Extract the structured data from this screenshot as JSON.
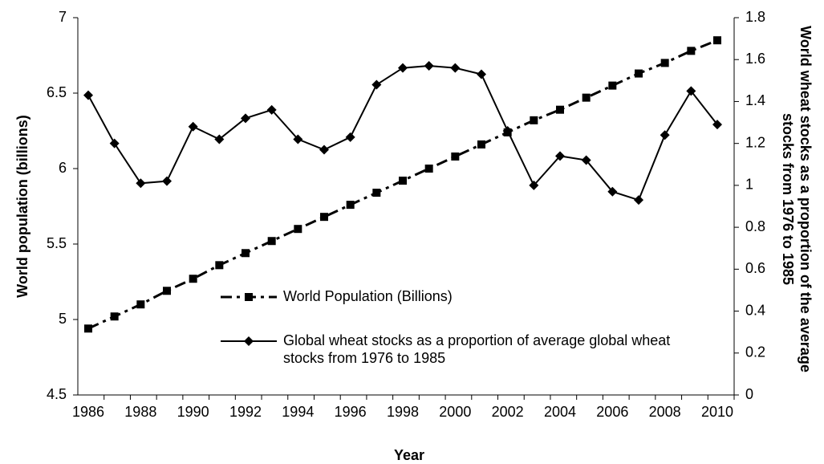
{
  "chart_data": {
    "type": "line",
    "x_label": "Year",
    "y_label": "World population (billions)",
    "y2_label": "World wheat stocks as a proportion of the average stocks from 1976 to 1985",
    "categories": [
      "1986",
      null,
      "1988",
      null,
      "1990",
      null,
      "1992",
      null,
      "1994",
      null,
      "1996",
      null,
      "1998",
      null,
      "2000",
      null,
      "2002",
      null,
      "2004",
      null,
      "2006",
      null,
      "2008",
      null,
      "2010"
    ],
    "ylim": [
      4.5,
      7
    ],
    "yticks": [
      4.5,
      5,
      5.5,
      6,
      6.5,
      7
    ],
    "y2lim": [
      0,
      1.8
    ],
    "y2ticks": [
      0,
      0.2,
      0.4,
      0.6,
      0.8,
      1,
      1.2,
      1.4,
      1.6,
      1.8
    ],
    "series": [
      {
        "name": "World Population (Billions)",
        "color": "#000000",
        "marker": "square",
        "dash": "dash-dot",
        "values": [
          4.94,
          5.02,
          5.1,
          5.19,
          5.27,
          5.36,
          5.44,
          5.52,
          5.6,
          5.68,
          5.76,
          5.84,
          5.92,
          6.0,
          6.08,
          6.16,
          6.24,
          6.32,
          6.39,
          6.47,
          6.55,
          6.63,
          6.7,
          6.78,
          6.85
        ]
      },
      {
        "name": "Global wheat stocks as a proportion of average global wheat stocks from 1976 to 1985",
        "color": "#000000",
        "marker": "diamond",
        "dash": "solid",
        "axis": "y2",
        "values": [
          1.43,
          1.2,
          1.01,
          1.02,
          1.28,
          1.22,
          1.32,
          1.36,
          1.22,
          1.17,
          1.23,
          1.48,
          1.56,
          1.57,
          1.56,
          1.53,
          1.26,
          1.0,
          1.14,
          1.12,
          0.97,
          0.93,
          1.24,
          1.45,
          1.29
        ]
      }
    ]
  }
}
